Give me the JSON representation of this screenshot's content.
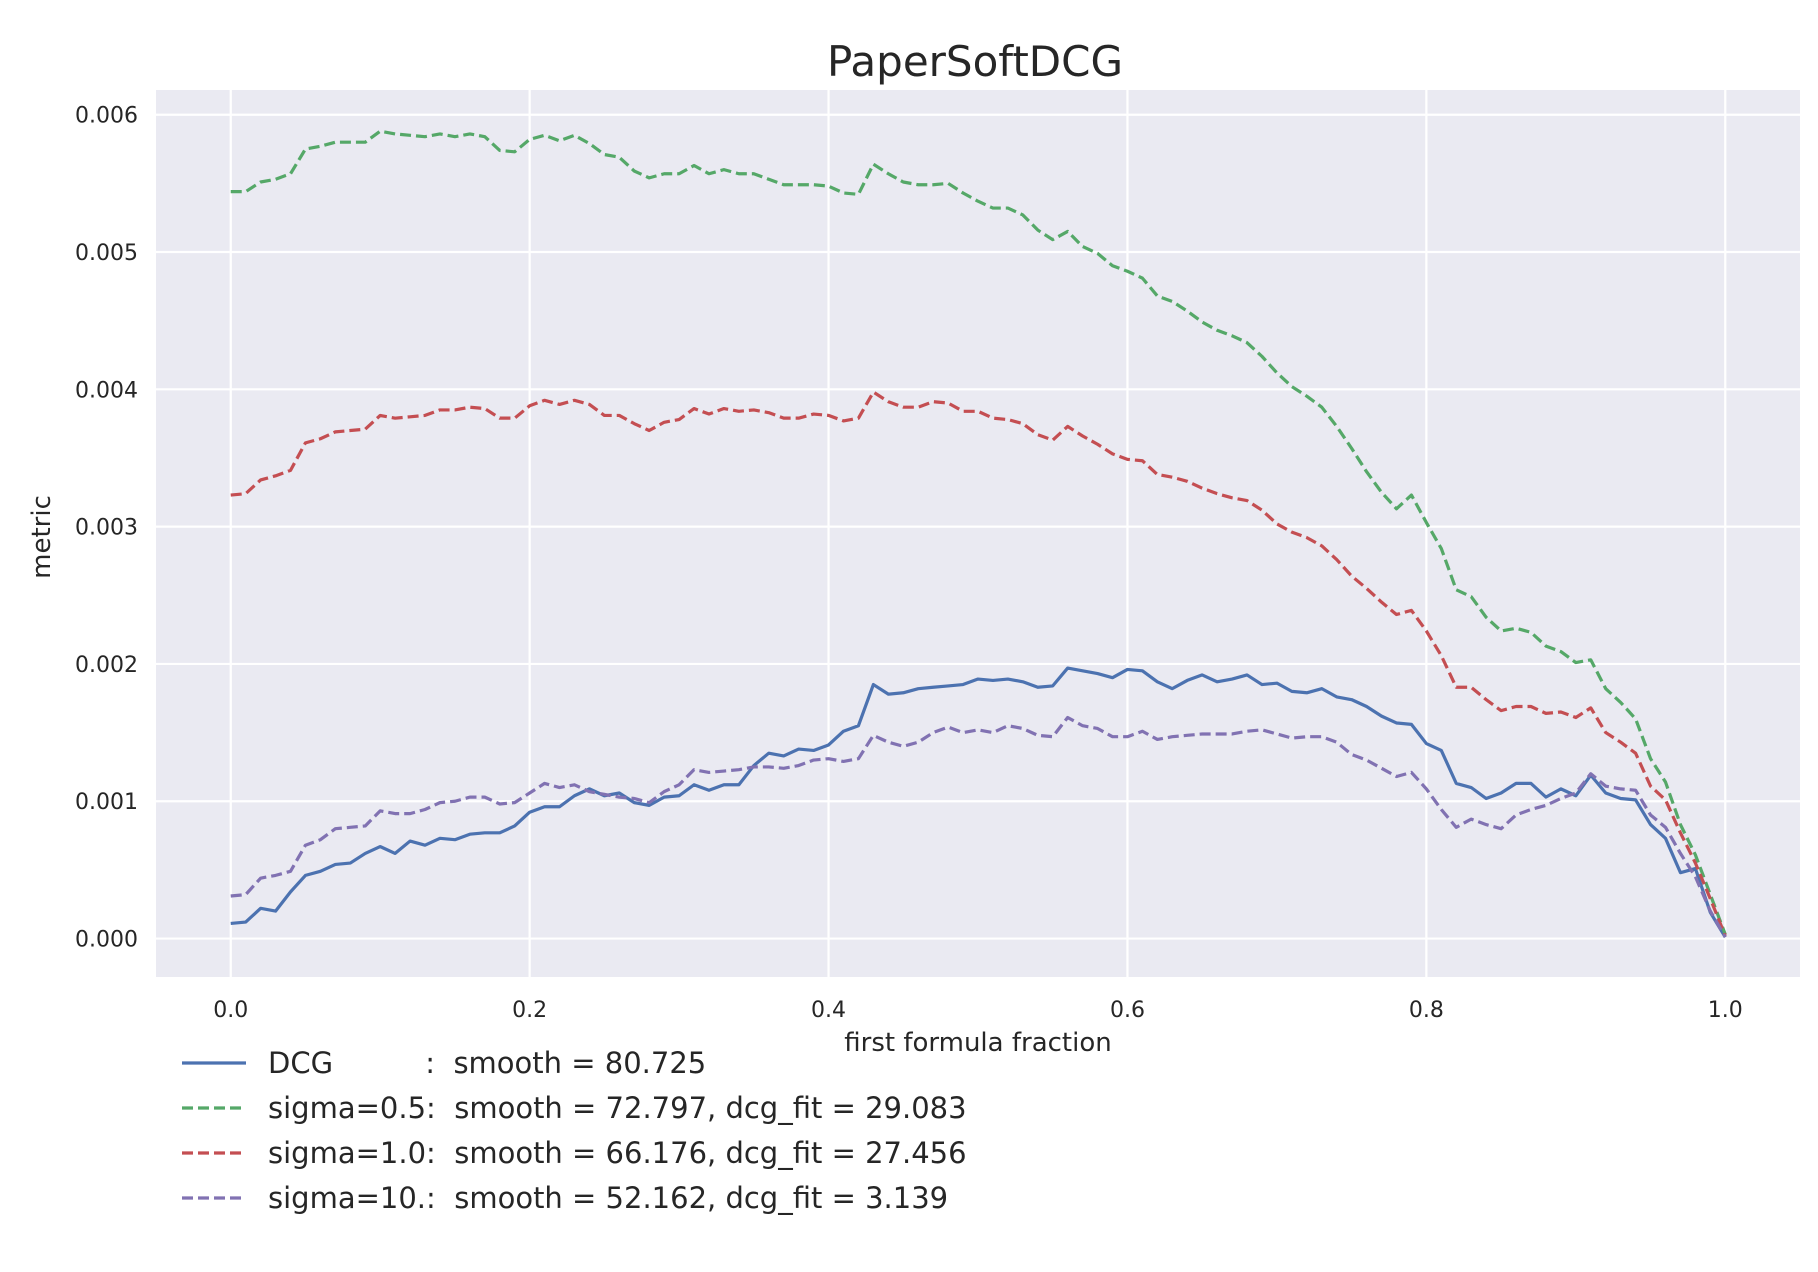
{
  "chart_data": {
    "type": "line",
    "title": "PaperSoftDCG",
    "xlabel": "first formula fraction",
    "ylabel": "metric",
    "xlim": [
      -0.05,
      1.05
    ],
    "ylim": [
      -0.00028,
      0.00618
    ],
    "xticks": [
      0.0,
      0.2,
      0.4,
      0.6,
      0.8,
      1.0
    ],
    "xtick_labels": [
      "0.0",
      "0.2",
      "0.4",
      "0.6",
      "0.8",
      "1.0"
    ],
    "yticks": [
      0.0,
      0.001,
      0.002,
      0.003,
      0.004,
      0.005,
      0.006
    ],
    "ytick_labels": [
      "0.000",
      "0.001",
      "0.002",
      "0.003",
      "0.004",
      "0.005",
      "0.006"
    ],
    "grid": true,
    "background": "#eaeaf2",
    "legend_position": "below plot, left",
    "x_start": 0.0,
    "x_step": 0.01,
    "series": [
      {
        "name": "DCG",
        "legend_label": "DCG          :  smooth = 80.725",
        "color": "#4c72b0",
        "style": "solid",
        "values": [
          0.00011,
          0.00012,
          0.00022,
          0.0002,
          0.00034,
          0.00046,
          0.00049,
          0.00054,
          0.00055,
          0.00062,
          0.00067,
          0.00062,
          0.00071,
          0.00068,
          0.00073,
          0.00072,
          0.00076,
          0.00077,
          0.00077,
          0.00082,
          0.00092,
          0.00096,
          0.00096,
          0.00104,
          0.00109,
          0.00104,
          0.00106,
          0.00099,
          0.00097,
          0.00103,
          0.00104,
          0.00112,
          0.00108,
          0.00112,
          0.00112,
          0.00126,
          0.00135,
          0.00133,
          0.00138,
          0.00137,
          0.00141,
          0.00151,
          0.00155,
          0.00185,
          0.00178,
          0.00179,
          0.00182,
          0.00183,
          0.00184,
          0.00185,
          0.00189,
          0.00188,
          0.00189,
          0.00187,
          0.00183,
          0.00184,
          0.00197,
          0.00195,
          0.00193,
          0.0019,
          0.00196,
          0.00195,
          0.00187,
          0.00182,
          0.00188,
          0.00192,
          0.00187,
          0.00189,
          0.00192,
          0.00185,
          0.00186,
          0.0018,
          0.00179,
          0.00182,
          0.00176,
          0.00174,
          0.00169,
          0.00162,
          0.00157,
          0.00156,
          0.00142,
          0.00137,
          0.00113,
          0.0011,
          0.00102,
          0.00106,
          0.00113,
          0.00113,
          0.00103,
          0.00109,
          0.00104,
          0.00119,
          0.00106,
          0.00102,
          0.00101,
          0.00083,
          0.00073,
          0.00048,
          0.00051,
          0.00019,
          1e-05
        ]
      },
      {
        "name": "sigma=0.5",
        "legend_label": "sigma=0.5:  smooth = 72.797, dcg_fit = 29.083",
        "color": "#55a868",
        "style": "dashed",
        "values": [
          0.00544,
          0.00544,
          0.00551,
          0.00553,
          0.00557,
          0.00575,
          0.00577,
          0.0058,
          0.0058,
          0.0058,
          0.00588,
          0.00586,
          0.00585,
          0.00584,
          0.00586,
          0.00584,
          0.00586,
          0.00584,
          0.00574,
          0.00573,
          0.00582,
          0.00585,
          0.00581,
          0.00585,
          0.00579,
          0.00571,
          0.00569,
          0.00559,
          0.00554,
          0.00557,
          0.00557,
          0.00563,
          0.00557,
          0.0056,
          0.00557,
          0.00557,
          0.00553,
          0.00549,
          0.00549,
          0.00549,
          0.00548,
          0.00543,
          0.00542,
          0.00564,
          0.00557,
          0.00551,
          0.00549,
          0.00549,
          0.0055,
          0.00543,
          0.00537,
          0.00532,
          0.00532,
          0.00527,
          0.00516,
          0.00509,
          0.00515,
          0.00504,
          0.00499,
          0.0049,
          0.00486,
          0.00481,
          0.00468,
          0.00464,
          0.00457,
          0.00449,
          0.00443,
          0.00439,
          0.00434,
          0.00424,
          0.00412,
          0.00402,
          0.00395,
          0.00387,
          0.00373,
          0.00357,
          0.0034,
          0.00325,
          0.00313,
          0.00323,
          0.00303,
          0.00284,
          0.00254,
          0.00249,
          0.00234,
          0.00224,
          0.00226,
          0.00223,
          0.00213,
          0.00209,
          0.00201,
          0.00203,
          0.00182,
          0.00172,
          0.0016,
          0.00131,
          0.00114,
          0.00083,
          0.00061,
          0.00032,
          3e-05
        ]
      },
      {
        "name": "sigma=1.0",
        "legend_label": "sigma=1.0:  smooth = 66.176, dcg_fit = 27.456",
        "color": "#c44e52",
        "style": "dashed",
        "values": [
          0.00323,
          0.00324,
          0.00334,
          0.00337,
          0.00341,
          0.00361,
          0.00364,
          0.00369,
          0.0037,
          0.00371,
          0.00381,
          0.00379,
          0.0038,
          0.00381,
          0.00385,
          0.00385,
          0.00387,
          0.00386,
          0.00379,
          0.00379,
          0.00388,
          0.00392,
          0.00389,
          0.00392,
          0.00389,
          0.00381,
          0.00381,
          0.00375,
          0.0037,
          0.00376,
          0.00378,
          0.00386,
          0.00382,
          0.00386,
          0.00384,
          0.00385,
          0.00383,
          0.00379,
          0.00379,
          0.00382,
          0.00381,
          0.00377,
          0.00379,
          0.00398,
          0.00391,
          0.00387,
          0.00387,
          0.00391,
          0.0039,
          0.00384,
          0.00384,
          0.00379,
          0.00378,
          0.00375,
          0.00367,
          0.00363,
          0.00373,
          0.00366,
          0.0036,
          0.00353,
          0.00349,
          0.00348,
          0.00338,
          0.00336,
          0.00333,
          0.00328,
          0.00324,
          0.00321,
          0.00319,
          0.00312,
          0.00302,
          0.00296,
          0.00292,
          0.00286,
          0.00276,
          0.00264,
          0.00255,
          0.00245,
          0.00236,
          0.00239,
          0.00224,
          0.00206,
          0.00183,
          0.00183,
          0.00174,
          0.00166,
          0.00169,
          0.00169,
          0.00164,
          0.00165,
          0.00161,
          0.00168,
          0.0015,
          0.00143,
          0.00135,
          0.00111,
          0.00101,
          0.00077,
          0.00055,
          0.00029,
          2e-05
        ]
      },
      {
        "name": "sigma=10.",
        "legend_label": "sigma=10.:  smooth = 52.162, dcg_fit = 3.139",
        "color": "#8172b2",
        "style": "dashed",
        "values": [
          0.00031,
          0.00032,
          0.00044,
          0.00046,
          0.00049,
          0.00068,
          0.00072,
          0.0008,
          0.00081,
          0.00082,
          0.00093,
          0.00091,
          0.00091,
          0.00094,
          0.00099,
          0.001,
          0.00103,
          0.00103,
          0.00098,
          0.00099,
          0.00106,
          0.00113,
          0.0011,
          0.00112,
          0.00107,
          0.00105,
          0.00103,
          0.00102,
          0.00099,
          0.00107,
          0.00112,
          0.00123,
          0.00121,
          0.00122,
          0.00123,
          0.00125,
          0.00125,
          0.00124,
          0.00126,
          0.0013,
          0.00131,
          0.00129,
          0.00131,
          0.00148,
          0.00143,
          0.0014,
          0.00143,
          0.0015,
          0.00154,
          0.0015,
          0.00152,
          0.0015,
          0.00155,
          0.00153,
          0.00148,
          0.00147,
          0.00161,
          0.00155,
          0.00153,
          0.00147,
          0.00147,
          0.00151,
          0.00145,
          0.00147,
          0.00148,
          0.00149,
          0.00149,
          0.00149,
          0.00151,
          0.00152,
          0.00149,
          0.00146,
          0.00147,
          0.00147,
          0.00143,
          0.00134,
          0.0013,
          0.00124,
          0.00118,
          0.00121,
          0.00109,
          0.00094,
          0.00081,
          0.00087,
          0.00083,
          0.0008,
          0.0009,
          0.00094,
          0.00097,
          0.00102,
          0.00106,
          0.0012,
          0.00111,
          0.00109,
          0.00108,
          0.0009,
          0.00081,
          0.00062,
          0.00045,
          0.0002,
          1e-05
        ]
      }
    ]
  }
}
